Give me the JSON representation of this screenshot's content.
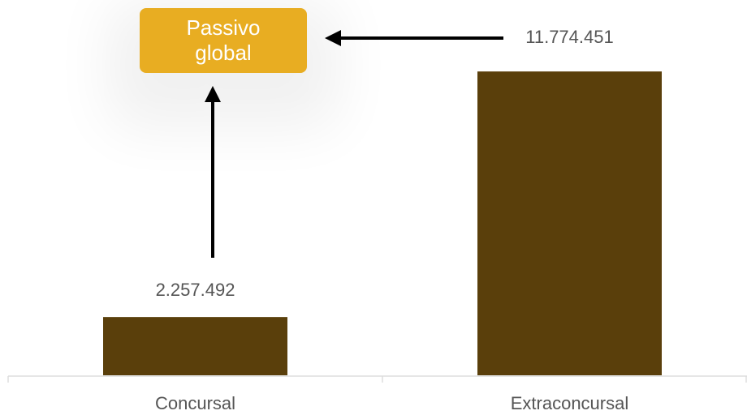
{
  "chart_data": {
    "type": "bar",
    "categories": [
      "Concursal",
      "Extraconcursal"
    ],
    "values": [
      2257492,
      11774451
    ],
    "value_labels": [
      "2.257.492",
      "11.774.451"
    ],
    "color": "#5a3f0b",
    "ylim": [
      0,
      12000000
    ],
    "annotation": "Passivo global",
    "annotation_color": "#e8ad22"
  }
}
